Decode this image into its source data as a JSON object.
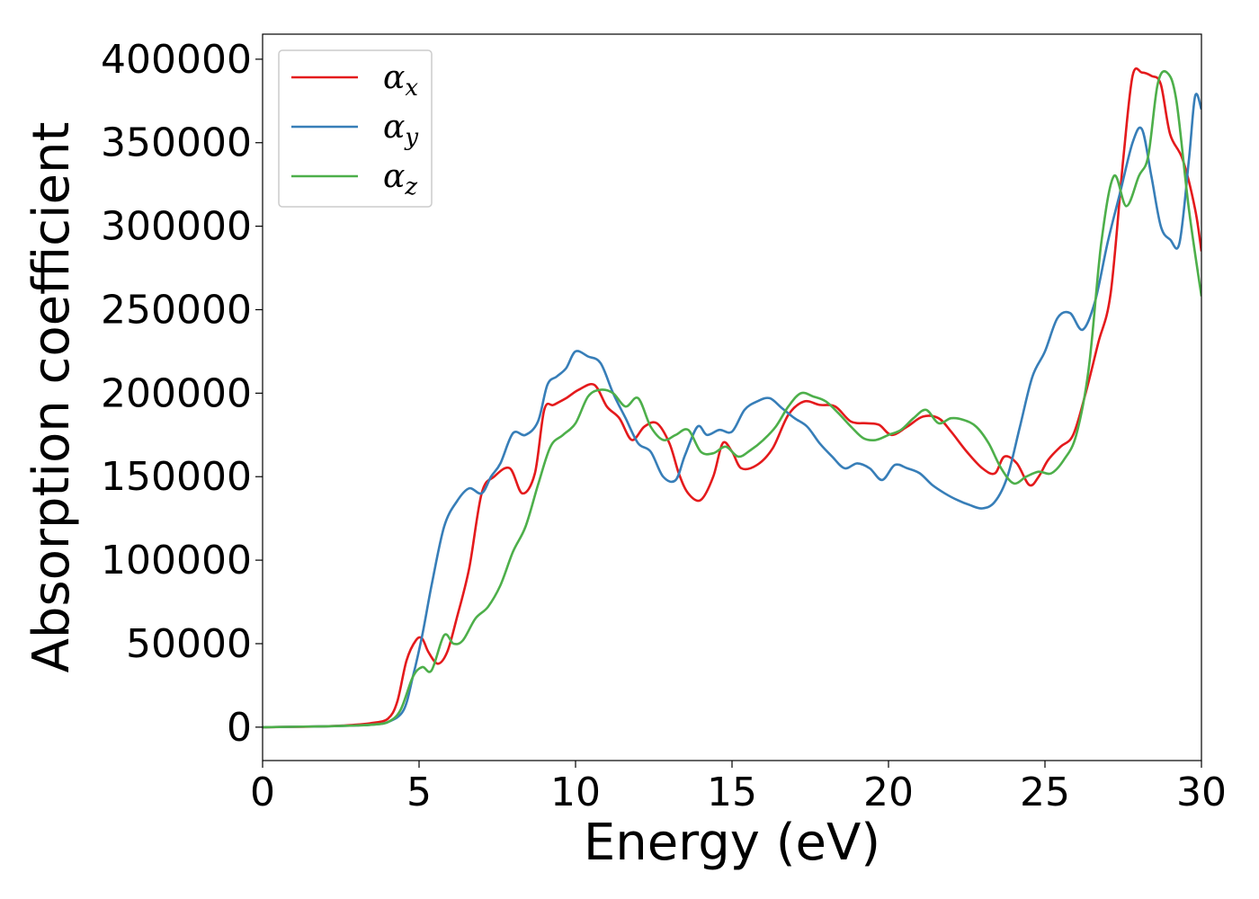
{
  "chart_data": {
    "type": "line",
    "xlabel": "Energy (eV)",
    "ylabel": "Absorption coefficient",
    "xlim": [
      0,
      30
    ],
    "ylim": [
      -20000,
      415000
    ],
    "xticks": [
      0,
      5,
      10,
      15,
      20,
      25,
      30
    ],
    "xtick_labels": [
      "0",
      "5",
      "10",
      "15",
      "20",
      "25",
      "30"
    ],
    "yticks": [
      0,
      50000,
      100000,
      150000,
      200000,
      250000,
      300000,
      350000,
      400000
    ],
    "ytick_labels": [
      "0",
      "50000",
      "100000",
      "150000",
      "200000",
      "250000",
      "300000",
      "350000",
      "400000"
    ],
    "grid": false,
    "legend_position": "top-left",
    "series": [
      {
        "name": "α",
        "subscript": "x",
        "color": "#e41a1c",
        "x": [
          0,
          2,
          3,
          3.5,
          4,
          4.3,
          4.6,
          4.9,
          5.1,
          5.3,
          5.6,
          5.9,
          6.2,
          6.6,
          7.0,
          7.4,
          7.9,
          8.3,
          8.7,
          9.0,
          9.3,
          9.7,
          10.1,
          10.6,
          11.0,
          11.4,
          11.8,
          12.2,
          12.6,
          13.0,
          13.3,
          13.6,
          14.0,
          14.4,
          14.7,
          15.0,
          15.3,
          15.8,
          16.3,
          16.8,
          17.3,
          17.8,
          18.3,
          18.8,
          19.3,
          19.7,
          20.1,
          20.6,
          21.1,
          21.6,
          22.0,
          22.5,
          23.0,
          23.4,
          23.7,
          24.1,
          24.5,
          24.8,
          25.1,
          25.5,
          25.9,
          26.3,
          26.7,
          27.1,
          27.5,
          27.8,
          28.1,
          28.4,
          28.7,
          29.0,
          29.4,
          29.8,
          30.0
        ],
        "y": [
          0,
          500,
          1500,
          2500,
          5000,
          15000,
          40000,
          52000,
          53000,
          45000,
          38000,
          45000,
          65000,
          95000,
          140000,
          150000,
          155000,
          140000,
          152000,
          190000,
          193000,
          197000,
          202000,
          205000,
          192000,
          185000,
          172000,
          180000,
          182000,
          170000,
          152000,
          140000,
          136000,
          150000,
          170000,
          165000,
          155000,
          157000,
          167000,
          187000,
          195000,
          193000,
          192000,
          183000,
          182000,
          181000,
          175000,
          180000,
          186000,
          185000,
          177000,
          165000,
          155000,
          152000,
          162000,
          158000,
          145000,
          150000,
          160000,
          168000,
          175000,
          200000,
          230000,
          260000,
          340000,
          390000,
          392000,
          390000,
          385000,
          355000,
          340000,
          310000,
          285000
        ]
      },
      {
        "name": "α",
        "subscript": "y",
        "color": "#377eb8",
        "x": [
          0,
          2,
          3,
          3.5,
          4,
          4.5,
          4.8,
          5.1,
          5.4,
          5.8,
          6.2,
          6.6,
          7.0,
          7.3,
          7.6,
          8.0,
          8.4,
          8.8,
          9.1,
          9.4,
          9.7,
          10.0,
          10.4,
          10.8,
          11.2,
          11.6,
          12.0,
          12.4,
          12.8,
          13.2,
          13.5,
          13.9,
          14.2,
          14.6,
          15.0,
          15.4,
          15.8,
          16.2,
          16.6,
          17.0,
          17.4,
          17.8,
          18.2,
          18.6,
          19.0,
          19.4,
          19.8,
          20.2,
          20.6,
          21.0,
          21.4,
          21.8,
          22.2,
          22.6,
          23.0,
          23.4,
          23.8,
          24.2,
          24.6,
          25.0,
          25.4,
          25.8,
          26.2,
          26.6,
          27.0,
          27.4,
          27.8,
          28.1,
          28.4,
          28.7,
          29.0,
          29.3,
          29.6,
          29.8,
          30.0
        ],
        "y": [
          0,
          500,
          1000,
          1500,
          3000,
          10000,
          30000,
          55000,
          85000,
          120000,
          135000,
          143000,
          140000,
          150000,
          158000,
          176000,
          175000,
          183000,
          205000,
          210000,
          215000,
          225000,
          222000,
          218000,
          200000,
          185000,
          170000,
          165000,
          150000,
          148000,
          163000,
          180000,
          175000,
          178000,
          177000,
          190000,
          195000,
          197000,
          191000,
          185000,
          180000,
          170000,
          162000,
          155000,
          158000,
          155000,
          148000,
          157000,
          155000,
          152000,
          145000,
          140000,
          136000,
          133000,
          131000,
          135000,
          150000,
          180000,
          210000,
          225000,
          245000,
          248000,
          238000,
          255000,
          290000,
          320000,
          350000,
          358000,
          330000,
          300000,
          292000,
          290000,
          340000,
          378000,
          370000
        ]
      },
      {
        "name": "α",
        "subscript": "z",
        "color": "#4daf4a",
        "x": [
          0,
          2,
          3,
          3.5,
          4,
          4.4,
          4.8,
          5.1,
          5.4,
          5.8,
          6.1,
          6.4,
          6.8,
          7.2,
          7.6,
          8.0,
          8.4,
          8.8,
          9.2,
          9.6,
          10.0,
          10.4,
          10.8,
          11.2,
          11.6,
          12.0,
          12.4,
          12.8,
          13.2,
          13.6,
          14.0,
          14.4,
          14.8,
          15.2,
          15.6,
          16.0,
          16.4,
          16.8,
          17.2,
          17.6,
          18.0,
          18.4,
          18.8,
          19.2,
          19.6,
          20.0,
          20.4,
          20.8,
          21.2,
          21.6,
          22.0,
          22.4,
          22.8,
          23.2,
          23.6,
          24.0,
          24.4,
          24.8,
          25.2,
          25.6,
          26.0,
          26.4,
          26.8,
          27.2,
          27.6,
          28.0,
          28.3,
          28.6,
          28.9,
          29.2,
          29.6,
          30.0
        ],
        "y": [
          0,
          500,
          1000,
          1500,
          3000,
          10000,
          30000,
          36000,
          34000,
          55000,
          50000,
          52000,
          65000,
          72000,
          85000,
          105000,
          120000,
          145000,
          168000,
          175000,
          182000,
          198000,
          202000,
          200000,
          192000,
          197000,
          180000,
          172000,
          175000,
          178000,
          165000,
          164000,
          168000,
          162000,
          166000,
          172000,
          180000,
          192000,
          200000,
          198000,
          195000,
          188000,
          180000,
          173000,
          172000,
          175000,
          178000,
          185000,
          190000,
          182000,
          185000,
          184000,
          180000,
          170000,
          155000,
          146000,
          150000,
          153000,
          152000,
          160000,
          175000,
          215000,
          290000,
          330000,
          312000,
          330000,
          342000,
          385000,
          392000,
          375000,
          310000,
          258000
        ]
      }
    ]
  }
}
